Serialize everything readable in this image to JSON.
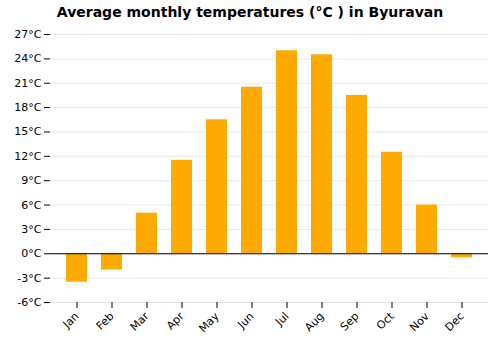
{
  "chart_data": {
    "type": "bar",
    "title": "Average monthly temperatures (°C ) in Byuravan",
    "categories": [
      "Jan",
      "Feb",
      "Mar",
      "Apr",
      "May",
      "Jun",
      "Jul",
      "Aug",
      "Sep",
      "Oct",
      "Nov",
      "Dec"
    ],
    "values": [
      -3.5,
      -2.0,
      5.0,
      11.5,
      16.5,
      20.5,
      25.0,
      24.5,
      19.5,
      12.5,
      6.0,
      -0.5
    ],
    "color": "#FFAA00",
    "ylim": [
      -6,
      27
    ],
    "yticks": [
      {
        "value": -6,
        "label": "-6°C"
      },
      {
        "value": -3,
        "label": "-3°C"
      },
      {
        "value": 0,
        "label": "0°C"
      },
      {
        "value": 3,
        "label": "3°C"
      },
      {
        "value": 6,
        "label": "6°C"
      },
      {
        "value": 9,
        "label": "9°C"
      },
      {
        "value": 12,
        "label": "12°C"
      },
      {
        "value": 15,
        "label": "15°C"
      },
      {
        "value": 18,
        "label": "18°C"
      },
      {
        "value": 21,
        "label": "21°C"
      },
      {
        "value": 24,
        "label": "24°C"
      },
      {
        "value": 27,
        "label": "27°C"
      }
    ],
    "grid": true
  }
}
